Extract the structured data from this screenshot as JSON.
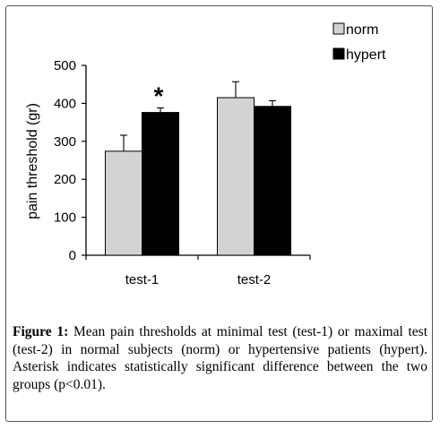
{
  "caption": {
    "label": "Figure 1:",
    "text": "Mean pain thresholds at minimal test (test-1) or maximal test (test-2) in normal subjects (norm) or hypertensive patients (hypert). Asterisk indicates statistically significant difference between the two groups (p<0.01)."
  },
  "chart_data": {
    "type": "bar",
    "categories": [
      "test-1",
      "test-2"
    ],
    "series": [
      {
        "name": "norm",
        "color": "#d3d3d3",
        "values": [
          274,
          415
        ],
        "error": [
          42,
          42
        ]
      },
      {
        "name": "hypert",
        "color": "#000000",
        "values": [
          376,
          392
        ],
        "error": [
          12,
          15
        ]
      }
    ],
    "ylabel": "pain threshold (gr)",
    "xlabel": "",
    "ylim": [
      0,
      500
    ],
    "yticks": [
      "0",
      "100",
      "200",
      "300",
      "400",
      "500"
    ],
    "annotations": [
      {
        "text": "*",
        "category": "test-1",
        "series": "hypert"
      }
    ],
    "legend_position": "top-right",
    "grid": false
  }
}
